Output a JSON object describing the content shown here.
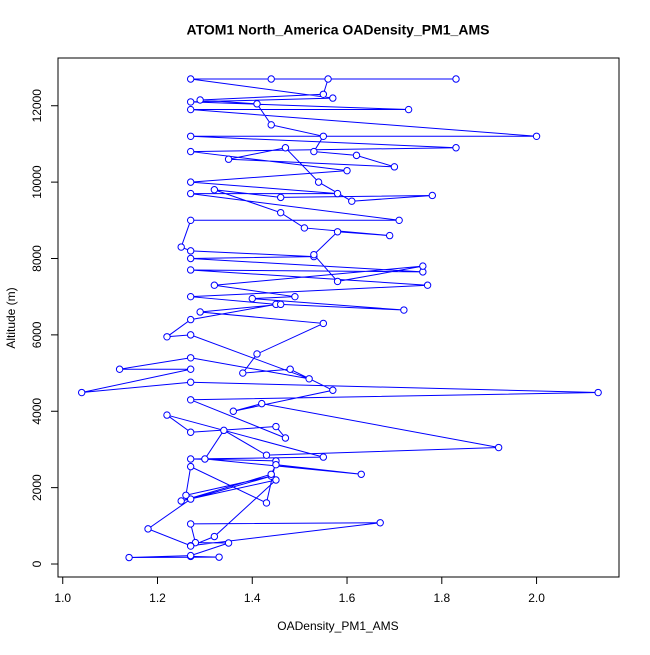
{
  "chart_data": {
    "type": "line",
    "title": "ATOM1 North_America OADensity_PM1_AMS",
    "xlabel": "OADensity_PM1_AMS",
    "ylabel": "Altitude (m)",
    "color": "#0000ff",
    "x": [
      1.27,
      1.33,
      1.14,
      1.27,
      1.35,
      1.28,
      1.27,
      1.67,
      1.27,
      1.18,
      1.27,
      1.44,
      1.26,
      1.27,
      1.43,
      1.45,
      1.27,
      1.55,
      1.22,
      1.27,
      1.45,
      1.47,
      1.27,
      2.13,
      1.27,
      1.04,
      1.27,
      1.12,
      1.27,
      1.52,
      1.27,
      1.22,
      1.27,
      1.45,
      1.27,
      1.77,
      1.27,
      1.76,
      1.27,
      1.53,
      1.27,
      1.25,
      1.27,
      1.71,
      1.27,
      1.58,
      1.27,
      1.6,
      1.27,
      1.83,
      1.27,
      2.0,
      1.27,
      1.73,
      1.27,
      1.57,
      1.27,
      1.83,
      1.44,
      1.56,
      1.55,
      1.29,
      1.41,
      1.44,
      1.55,
      1.53,
      1.62,
      1.7,
      1.35,
      1.47,
      1.54,
      1.61,
      1.78,
      1.46,
      1.32,
      1.46,
      1.51,
      1.69,
      1.58,
      1.53,
      1.58,
      1.76,
      1.32,
      1.49,
      1.4,
      1.72,
      1.46,
      1.29,
      1.55,
      1.41,
      1.38,
      1.48,
      1.57,
      1.36,
      1.42,
      1.92,
      1.43,
      1.34,
      1.3,
      1.63,
      1.45,
      1.44,
      1.25,
      1.45,
      1.32,
      1.27
    ],
    "values": [
      200,
      180,
      170,
      220,
      550,
      560,
      1050,
      1080,
      480,
      920,
      1700,
      2300,
      1800,
      2550,
      1600,
      2700,
      2750,
      2800,
      3900,
      3450,
      3600,
      3300,
      4300,
      4490,
      4760,
      4490,
      5100,
      5100,
      5400,
      4850,
      6000,
      5950,
      6400,
      6800,
      7000,
      7300,
      7700,
      7650,
      8000,
      8050,
      8200,
      8300,
      9000,
      9000,
      9700,
      9700,
      10000,
      10300,
      10800,
      10900,
      11200,
      11200,
      11900,
      11900,
      12100,
      12200,
      12700,
      12700,
      12700,
      12700,
      12300,
      12150,
      12050,
      11500,
      11200,
      10800,
      10700,
      10400,
      10600,
      10900,
      10000,
      9500,
      9650,
      9600,
      9800,
      9200,
      8800,
      8600,
      8700,
      8100,
      7400,
      7800,
      7300,
      7000,
      6950,
      6650,
      6800,
      6600,
      6300,
      5500,
      5000,
      5100,
      4550,
      4000,
      4200,
      3050,
      2850,
      3500,
      2750,
      2350,
      2600,
      2350,
      1650,
      2200,
      720,
      470
    ],
    "xlim": [
      0.99,
      2.174
    ],
    "ylim": [
      -340,
      13250
    ],
    "xticks": [
      {
        "value": 1.0,
        "label": "1.0"
      },
      {
        "value": 1.2,
        "label": "1.2"
      },
      {
        "value": 1.4,
        "label": "1.4"
      },
      {
        "value": 1.6,
        "label": "1.6"
      },
      {
        "value": 1.8,
        "label": "1.8"
      },
      {
        "value": 2.0,
        "label": "2.0"
      }
    ],
    "yticks": [
      0,
      2000,
      4000,
      6000,
      8000,
      10000,
      12000
    ]
  }
}
